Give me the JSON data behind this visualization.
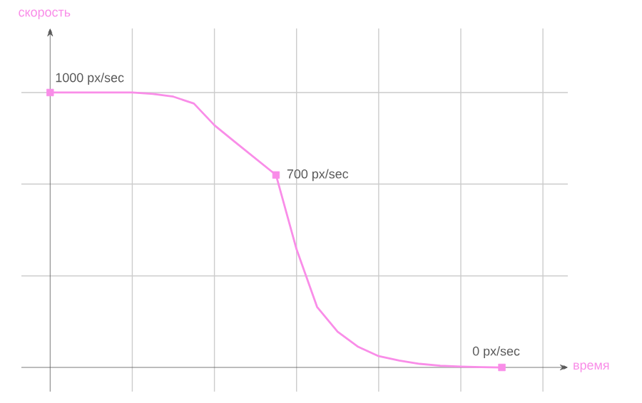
{
  "chart_data": {
    "type": "line",
    "xlabel": "время",
    "ylabel": "скорость",
    "categories": [
      null,
      null,
      null,
      null,
      null,
      null,
      null,
      null,
      null,
      null,
      null,
      null,
      null,
      null,
      null,
      null,
      null,
      null,
      null,
      null,
      null,
      null,
      null
    ],
    "ylim": [
      -88,
      1233
    ],
    "yticks": [
      {
        "value": 0,
        "label": null
      },
      {
        "value": 333,
        "label": null
      },
      {
        "value": 667,
        "label": null
      },
      {
        "value": 1000,
        "label": null
      }
    ],
    "grid": true,
    "series": [
      {
        "color": "#f98de8",
        "values": [
          1000,
          1000,
          1000,
          1000,
          1000,
          995,
          985,
          960,
          881,
          820,
          760,
          700,
          430,
          220,
          130,
          75,
          41,
          25,
          13,
          6,
          3,
          1,
          0
        ],
        "value_labels": [
          "1000 px/sec",
          null,
          null,
          null,
          null,
          null,
          null,
          null,
          null,
          null,
          null,
          "700 px/sec",
          null,
          null,
          null,
          null,
          null,
          null,
          null,
          null,
          null,
          null,
          "0 px/sec"
        ]
      }
    ]
  }
}
